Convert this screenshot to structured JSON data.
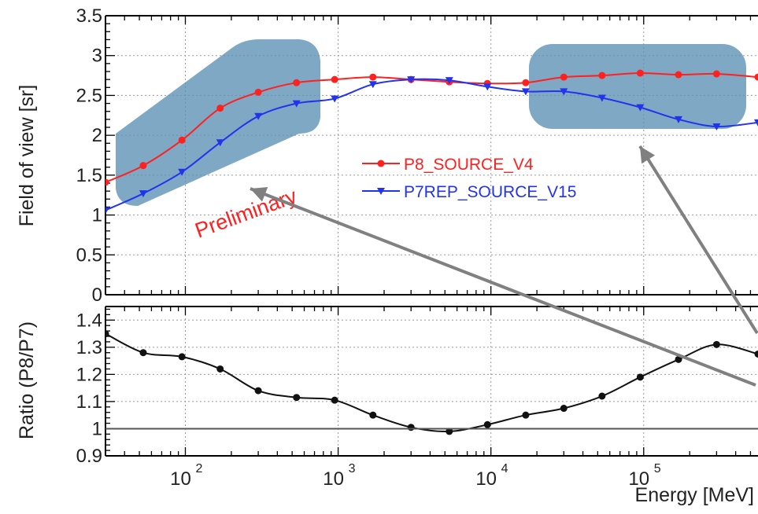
{
  "chart_data": [
    {
      "type": "line",
      "ylabel": "Field of view [sr]",
      "xscale": "log",
      "xlim": [
        30,
        560000
      ],
      "ylim": [
        0,
        3.5
      ],
      "ytick_labels": [
        "0",
        "0.5",
        "1",
        "1.5",
        "2",
        "2.5",
        "3",
        "3.5"
      ],
      "grid": true,
      "legend": "center",
      "watermark": "Preliminary",
      "series": [
        {
          "name": "P8_SOURCE_V4",
          "color": "#ff2020",
          "marker": "circle",
          "x": [
            30,
            53,
            95,
            169,
            300,
            534,
            949,
            1690,
            3000,
            5340,
            9490,
            16900,
            30000,
            53400,
            94900,
            169000,
            300000,
            560000
          ],
          "y": [
            1.41,
            1.62,
            1.94,
            2.34,
            2.54,
            2.66,
            2.7,
            2.73,
            2.7,
            2.67,
            2.65,
            2.66,
            2.73,
            2.75,
            2.78,
            2.76,
            2.77,
            2.73
          ]
        },
        {
          "name": "P7REP_SOURCE_V15",
          "color": "#2233ee",
          "marker": "triangle-down",
          "x": [
            30,
            53,
            95,
            169,
            300,
            534,
            949,
            1690,
            3000,
            5340,
            9490,
            16900,
            30000,
            53400,
            94900,
            169000,
            300000,
            560000
          ],
          "y": [
            1.06,
            1.27,
            1.54,
            1.91,
            2.24,
            2.4,
            2.46,
            2.64,
            2.7,
            2.69,
            2.61,
            2.55,
            2.55,
            2.47,
            2.35,
            2.2,
            2.11,
            2.16
          ]
        }
      ]
    },
    {
      "type": "line",
      "ylabel": "Ratio (P8/P7)",
      "xlabel": "Energy [MeV]",
      "xscale": "log",
      "xlim": [
        30,
        560000
      ],
      "ylim": [
        0.9,
        1.45
      ],
      "ytick_labels": [
        "0.9",
        "1",
        "1.1",
        "1.2",
        "1.3",
        "1.4"
      ],
      "xtick_labels": [
        {
          "base": "10",
          "exp": "2"
        },
        {
          "base": "10",
          "exp": "3"
        },
        {
          "base": "10",
          "exp": "4"
        },
        {
          "base": "10",
          "exp": "5"
        }
      ],
      "reference_line": 1,
      "grid": true,
      "series": [
        {
          "color": "#111111",
          "marker": "circle",
          "x": [
            30,
            53,
            95,
            169,
            300,
            534,
            949,
            1690,
            3000,
            5340,
            9490,
            16900,
            30000,
            53400,
            94900,
            169000,
            300000,
            560000
          ],
          "y": [
            1.35,
            1.28,
            1.265,
            1.22,
            1.14,
            1.115,
            1.105,
            1.05,
            1.005,
            0.99,
            1.015,
            1.05,
            1.075,
            1.12,
            1.19,
            1.255,
            1.31,
            1.275
          ]
        }
      ]
    }
  ]
}
